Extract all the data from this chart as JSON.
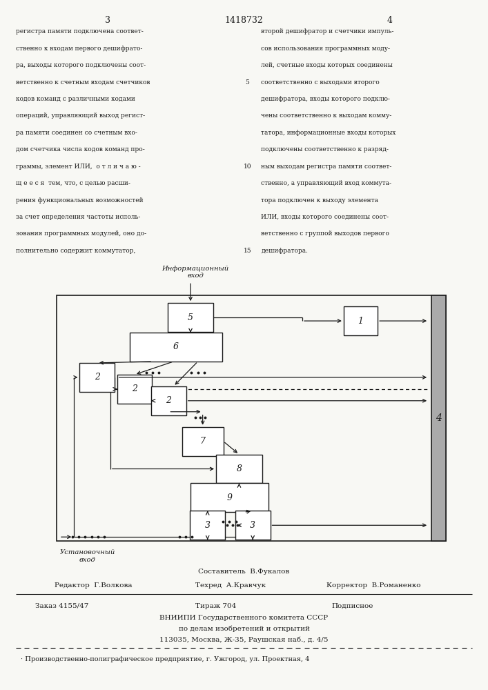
{
  "page_width": 7.07,
  "page_height": 10.0,
  "bg_color": "#f8f8f4",
  "text_color": "#1a1a1a",
  "header": {
    "left_page_num": "3",
    "center_title": "1418732",
    "right_page_num": "4"
  },
  "left_column_text": [
    "регистра памяти подключена соответ-",
    "ственно к входам первого дешифрато-",
    "ра, выходы которого подключены соот-",
    "ветственно к счетным входам счетчиков",
    "кодов команд с различными кодами",
    "операций, управляющий выход регист-",
    "ра памяти соединен со счетным вхо-",
    "дом счетчика числа кодов команд про-",
    "граммы, элемент ИЛИ,  о т л и ч а ю -",
    "щ е е с я  тем, что, с целью расши-",
    "рения функциональных возможностей",
    "за счет определения частоты исполь-",
    "зования программных модулей, оно до-",
    "полнительно содержит коммутатор,"
  ],
  "right_column_text": [
    "второй дешифратор и счетчики импуль-",
    "сов использования программных моду-",
    "лей, счетные входы которых соединены",
    "соответственно с выходами второго",
    "дешифратора, входы которого подклю-",
    "чены соответственно к выходам комму-",
    "татора, информационные входы которых",
    "подключены соответственно к разряд-",
    "ным выходам регистра памяти соответ-",
    "ственно, а управляющий вход коммута-",
    "тора подключен к выходу элемента",
    "ИЛИ, входы которого соединены соот-",
    "ветственно с группой выходов первого",
    "дешифратора."
  ],
  "footer": {
    "composer": "Составитель  В.Фукалов",
    "editor_label": "Редактор  Г.Волкова",
    "techred_label": "Техред  А.Кравчук",
    "corrector_label": "Корректор  В.Романенко",
    "order": "Заказ 4155/47",
    "tirage": "Тираж 704",
    "podpisnoe": "Подписное",
    "vniip1": "ВНИИПИ Государственного комитета СССР",
    "vniip2": "по делам изобретений и открытий",
    "vniip3": "113035, Москва, Ж-35, Раушская наб., д. 4/5",
    "prod": "Производственно-полиграфическое предприятие, г. Ужгород, ул. Проектная, 4"
  }
}
